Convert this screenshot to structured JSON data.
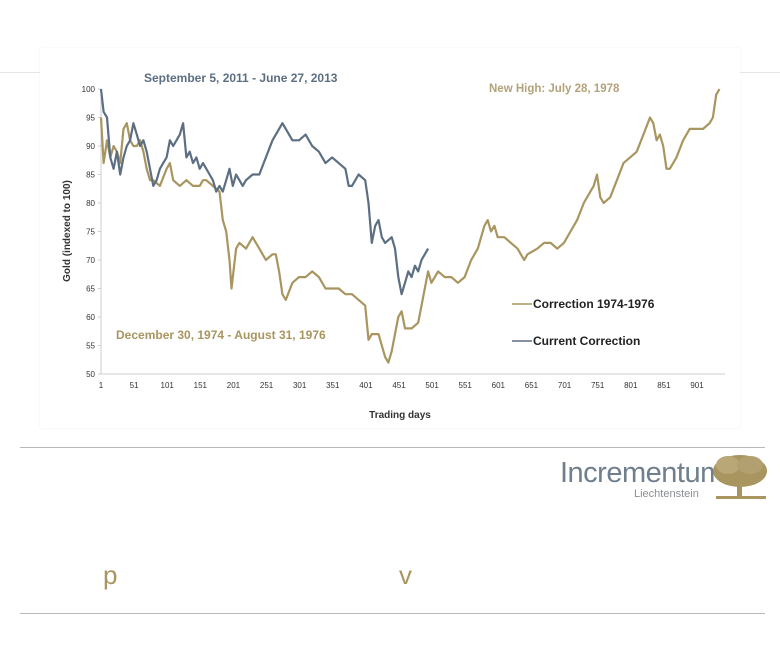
{
  "colors": {
    "gold": "#a8955f",
    "blue": "#5c6f82",
    "axis": "#cccccc",
    "text": "#333333"
  },
  "chart_data": {
    "type": "line",
    "xlabel": "Trading days",
    "ylabel": "Gold (indexed to 100)",
    "xlim": [
      1,
      940
    ],
    "ylim": [
      50,
      100
    ],
    "x_ticks": [
      1,
      51,
      101,
      151,
      201,
      251,
      301,
      351,
      401,
      451,
      501,
      551,
      601,
      651,
      701,
      751,
      801,
      851,
      901
    ],
    "y_ticks": [
      50,
      55,
      60,
      65,
      70,
      75,
      80,
      85,
      90,
      95,
      100
    ],
    "grid": false,
    "legend_placement": "right",
    "annotations": {
      "current_period": "September 5, 2011 -  June 27, 2013",
      "past_period": "December 30, 1974 - August 31, 1976",
      "new_high": "New High: July 28, 1978"
    },
    "series": [
      {
        "name": "Correction 1974-1976",
        "color": "#a8955f",
        "x": [
          1,
          5,
          10,
          15,
          20,
          25,
          30,
          35,
          40,
          45,
          50,
          55,
          60,
          65,
          70,
          75,
          80,
          90,
          100,
          105,
          110,
          120,
          130,
          140,
          150,
          155,
          160,
          170,
          180,
          185,
          190,
          195,
          198,
          205,
          210,
          220,
          230,
          240,
          250,
          260,
          265,
          270,
          275,
          280,
          290,
          300,
          310,
          320,
          330,
          340,
          350,
          360,
          370,
          380,
          390,
          400,
          405,
          410,
          420,
          425,
          430,
          435,
          440,
          445,
          450,
          455,
          460,
          470,
          480,
          485,
          495,
          500,
          510,
          520,
          530,
          540,
          550,
          560,
          570,
          580,
          585,
          590,
          595,
          600,
          610,
          620,
          630,
          640,
          645,
          660,
          670,
          680,
          690,
          700,
          710,
          720,
          730,
          740,
          745,
          750,
          755,
          760,
          770,
          780,
          790,
          800,
          810,
          820,
          830,
          835,
          840,
          845,
          850,
          855,
          860,
          870,
          880,
          890,
          900,
          910,
          920,
          925,
          930,
          935
        ],
        "y": [
          95,
          87,
          91,
          88,
          90,
          89,
          87,
          93,
          94,
          91,
          90,
          90,
          91,
          89,
          86,
          84,
          84,
          83,
          86,
          87,
          84,
          83,
          84,
          83,
          83,
          84,
          84,
          83,
          82,
          77,
          75,
          70,
          65,
          72,
          73,
          72,
          74,
          72,
          70,
          71,
          71,
          68,
          64,
          63,
          66,
          67,
          67,
          68,
          67,
          65,
          65,
          65,
          64,
          64,
          63,
          62,
          56,
          57,
          57,
          55,
          53,
          52,
          54,
          57,
          60,
          61,
          58,
          58,
          59,
          62,
          68,
          66,
          68,
          67,
          67,
          66,
          67,
          70,
          72,
          76,
          77,
          75,
          76,
          74,
          74,
          73,
          72,
          70,
          71,
          72,
          73,
          73,
          72,
          73,
          75,
          77,
          80,
          82,
          83,
          85,
          81,
          80,
          81,
          84,
          87,
          88,
          89,
          92,
          95,
          94,
          91,
          92,
          90,
          86,
          86,
          88,
          91,
          93,
          93,
          93,
          94,
          95,
          99,
          100
        ]
      },
      {
        "name": "Current Correction",
        "color": "#5c6f82",
        "x": [
          1,
          5,
          10,
          15,
          20,
          25,
          30,
          35,
          40,
          45,
          50,
          55,
          60,
          65,
          70,
          75,
          80,
          85,
          90,
          95,
          100,
          105,
          110,
          115,
          120,
          125,
          130,
          135,
          140,
          145,
          150,
          155,
          160,
          165,
          170,
          175,
          180,
          185,
          190,
          195,
          200,
          205,
          210,
          215,
          220,
          230,
          240,
          250,
          260,
          270,
          275,
          280,
          290,
          300,
          310,
          320,
          330,
          340,
          350,
          360,
          370,
          375,
          380,
          390,
          400,
          405,
          410,
          415,
          420,
          425,
          430,
          440,
          445,
          450,
          455,
          460,
          465,
          470,
          475,
          480,
          485,
          490,
          495
        ],
        "y": [
          100,
          96,
          95,
          88,
          86,
          89,
          85,
          88,
          90,
          91,
          94,
          92,
          90,
          91,
          89,
          86,
          83,
          84,
          86,
          87,
          88,
          91,
          90,
          91,
          92,
          94,
          88,
          89,
          87,
          88,
          86,
          87,
          86,
          85,
          84,
          82,
          83,
          82,
          84,
          86,
          83,
          85,
          84,
          83,
          84,
          85,
          85,
          88,
          91,
          93,
          94,
          93,
          91,
          91,
          92,
          90,
          89,
          87,
          88,
          87,
          86,
          83,
          83,
          85,
          84,
          80,
          73,
          76,
          77,
          74,
          73,
          74,
          72,
          67,
          64,
          66,
          68,
          67,
          69,
          68,
          70,
          71,
          72
        ]
      }
    ]
  },
  "logo": {
    "name": "Incrementum",
    "sub": "Liechtenstein"
  },
  "footer": {
    "letter_left": "p",
    "letter_right": "v"
  }
}
